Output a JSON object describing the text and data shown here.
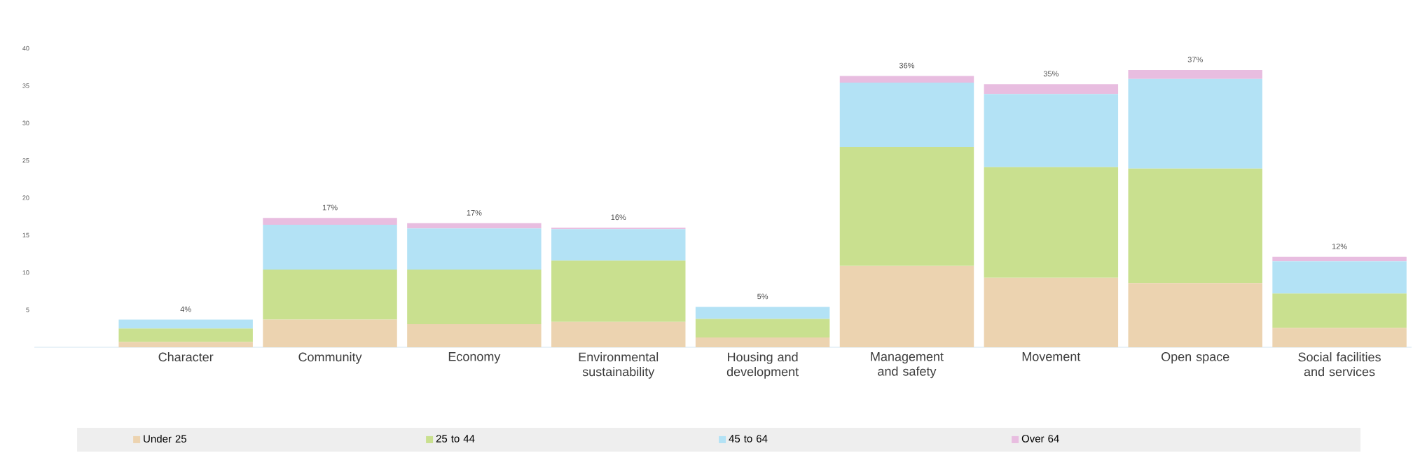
{
  "chart_data": {
    "type": "bar",
    "stacked": true,
    "categories": [
      "Character",
      "Community",
      "Economy",
      "Environmental sustainability",
      "Housing and development",
      "Management and safety",
      "Movement",
      "Open space",
      "Social facilities and services"
    ],
    "series": [
      {
        "name": "Under 25",
        "color": "#ecd3b0",
        "values": [
          0.7,
          3.7,
          3.1,
          3.4,
          1.3,
          10.9,
          9.3,
          8.6,
          2.6
        ]
      },
      {
        "name": "25 to 44",
        "color": "#c9e08f",
        "values": [
          1.8,
          6.7,
          7.3,
          8.2,
          2.5,
          15.9,
          14.8,
          15.3,
          4.6
        ]
      },
      {
        "name": "45 to 64",
        "color": "#b3e2f5",
        "values": [
          1.2,
          6.0,
          5.5,
          4.2,
          1.6,
          8.6,
          9.8,
          12.0,
          4.3
        ]
      },
      {
        "name": "Over 64",
        "color": "#e8bde0",
        "values": [
          0,
          0.9,
          0.7,
          0.2,
          null,
          0.9,
          1.3,
          1.2,
          0.6
        ]
      }
    ],
    "totals": [
      "4%",
      "17%",
      "17%",
      "16%",
      "5%",
      "36%",
      "35%",
      "37%",
      "12%"
    ],
    "ylim": [
      0,
      40
    ],
    "yticks": [
      5,
      10,
      15,
      20,
      25,
      30,
      35,
      40
    ],
    "legend": "bottom"
  }
}
